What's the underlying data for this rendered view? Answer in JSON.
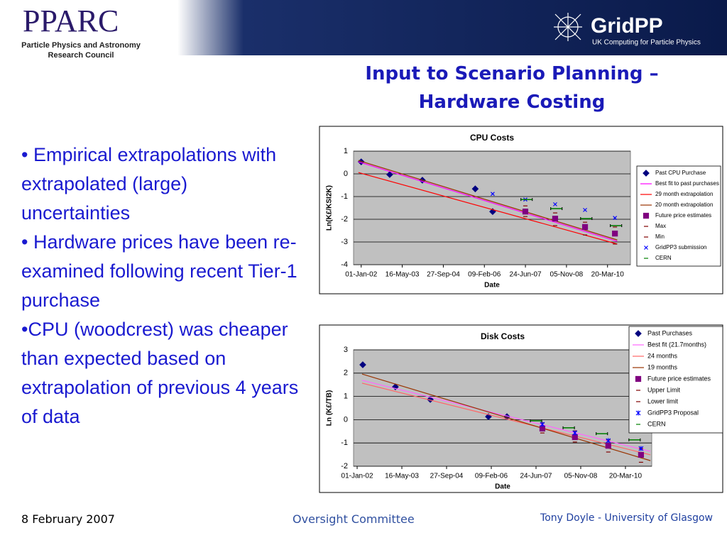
{
  "header": {
    "left_logo": "PPARC",
    "left_subtitle": [
      "Particle Physics and Astronomy",
      "Research Council"
    ],
    "right_logo": "GridPP",
    "right_subtitle": "UK Computing for Particle Physics"
  },
  "title": "Input to Scenario Planning – Hardware Costing",
  "bullets": [
    "• Empirical extrapolations with extrapolated (large) uncertainties",
    "• Hardware prices have been re-examined following recent Tier-1 purchase",
    "•CPU (woodcrest) was cheaper than expected based on extrapolation of previous 4 years of data"
  ],
  "footer": {
    "date": "8 February 2007",
    "event": "Oversight Committee",
    "author": "Tony Doyle - University of Glasgow"
  },
  "chart_data": [
    {
      "type": "scatter",
      "title": "CPU Costs",
      "x_label": "Date",
      "y_label": "Ln(K£/KSI2K)",
      "legend": "right",
      "grid": true,
      "xlim": [
        "2001-09-30",
        "2010-12-24"
      ],
      "xticks": [
        {
          "value": "2002-01-01",
          "label": "01-Jan-02"
        },
        {
          "value": "2003-05-16",
          "label": "16-May-03"
        },
        {
          "value": "2004-09-27",
          "label": "27-Sep-04"
        },
        {
          "value": "2006-02-09",
          "label": "09-Feb-06"
        },
        {
          "value": "2007-06-24",
          "label": "24-Jun-07"
        },
        {
          "value": "2008-11-05",
          "label": "05-Nov-08"
        },
        {
          "value": "2010-03-20",
          "label": "20-Mar-10"
        }
      ],
      "ylim": [
        -4,
        1
      ],
      "yticks": [
        1,
        0,
        -1,
        -2,
        -3,
        -4
      ],
      "series": [
        {
          "name": "Past CPU Purchase",
          "marker": "diamond",
          "color": "#000080",
          "x": [
            "2002-01-01",
            "2002-12-14",
            "2004-01-16",
            "2005-10-21",
            "2006-05-21"
          ],
          "values": [
            0.53,
            -0.03,
            -0.28,
            -0.66,
            -1.66
          ]
        },
        {
          "name": "Best fit to past purchases",
          "marker": "line",
          "color": "#ff00ff",
          "x": [
            "2001-11-28",
            "2010-07-16"
          ],
          "values": [
            0.53,
            -2.97
          ]
        },
        {
          "name": "29 month extrapolation",
          "marker": "line",
          "color": "#ff0000",
          "x": [
            "2001-11-28",
            "2010-07-16"
          ],
          "values": [
            0.06,
            -3.09
          ]
        },
        {
          "name": "20 month extrapolation",
          "marker": "line",
          "color": "#993300",
          "x": [
            "2001-11-28",
            "2010-07-16"
          ],
          "values": [
            0.59,
            -2.91
          ]
        },
        {
          "name": "Future price estimates",
          "marker": "square",
          "color": "#800080",
          "x": [
            "2007-06-23",
            "2008-06-20",
            "2009-06-19",
            "2010-06-18"
          ],
          "values": [
            -1.66,
            -1.97,
            -2.34,
            -2.63
          ]
        },
        {
          "name": "Max",
          "marker": "dash",
          "color": "#800000",
          "x": [
            "2007-06-23",
            "2008-06-20",
            "2009-06-19",
            "2010-06-18"
          ],
          "values": [
            -1.41,
            -1.72,
            -2.13,
            -2.34
          ]
        },
        {
          "name": "Min",
          "marker": "dash",
          "color": "#800000",
          "x": [
            "2007-06-23",
            "2008-06-20",
            "2009-06-19",
            "2010-06-18"
          ],
          "values": [
            -1.88,
            -2.28,
            -2.69,
            -3.09
          ]
        },
        {
          "name": "GridPP3 submission",
          "marker": "x",
          "color": "#0000ff",
          "x": [
            "2006-05-21",
            "2007-06-23",
            "2008-06-20",
            "2009-06-19",
            "2010-06-18"
          ],
          "values": [
            -0.88,
            -1.13,
            -1.34,
            -1.59,
            -1.94
          ]
        },
        {
          "name": "CERN",
          "marker": "bar",
          "color": "#008000",
          "x": [
            "2007-07-08",
            "2008-07-05",
            "2009-07-04",
            "2010-07-01"
          ],
          "values": [
            -1.13,
            -1.53,
            -1.97,
            -2.28
          ]
        }
      ]
    },
    {
      "type": "scatter",
      "title": "Disk Costs",
      "x_label": "Date",
      "y_label": "Ln (K£/TB)",
      "legend": "top-right",
      "grid": true,
      "xlim": [
        "2001-11-22",
        "2011-01-08"
      ],
      "xticks": [
        {
          "value": "2002-01-01",
          "label": "01-Jan-02"
        },
        {
          "value": "2003-05-16",
          "label": "16-May-03"
        },
        {
          "value": "2004-09-27",
          "label": "27-Sep-04"
        },
        {
          "value": "2006-02-09",
          "label": "09-Feb-06"
        },
        {
          "value": "2007-06-24",
          "label": "24-Jun-07"
        },
        {
          "value": "2008-11-05",
          "label": "05-Nov-08"
        },
        {
          "value": "2010-03-20",
          "label": "20-Mar-10"
        }
      ],
      "ylim": [
        -2,
        3
      ],
      "yticks": [
        3,
        2,
        1,
        0,
        -1,
        -2
      ],
      "series": [
        {
          "name": "Past Purchases",
          "marker": "diamond",
          "color": "#000080",
          "x": [
            "2002-03-05",
            "2003-03-05",
            "2004-03-29",
            "2006-01-08",
            "2006-08-03"
          ],
          "values": [
            2.36,
            1.41,
            0.87,
            0.13,
            0.13
          ]
        },
        {
          "name": "Best fit (21.7months)",
          "marker": "line",
          "color": "#ff66ff",
          "x": [
            "2002-02-25",
            "2010-12-24"
          ],
          "values": [
            1.69,
            -1.36
          ]
        },
        {
          "name": "24 months",
          "marker": "line",
          "color": "#ff6666",
          "x": [
            "2002-02-25",
            "2010-12-24"
          ],
          "values": [
            1.57,
            -1.51
          ]
        },
        {
          "name": "19 months",
          "marker": "line",
          "color": "#993300",
          "x": [
            "2002-02-25",
            "2010-12-24"
          ],
          "values": [
            1.96,
            -1.76
          ]
        },
        {
          "name": "Future price estimates",
          "marker": "square",
          "color": "#800080",
          "x": [
            "2007-09-03",
            "2008-09-01",
            "2009-09-09",
            "2010-09-10"
          ],
          "values": [
            -0.38,
            -0.75,
            -1.12,
            -1.51
          ]
        },
        {
          "name": "Upper Limit",
          "marker": "dash",
          "color": "#800000",
          "x": [
            "2007-09-03",
            "2008-09-01",
            "2009-09-09",
            "2010-09-10"
          ],
          "values": [
            -0.14,
            -0.48,
            -0.87,
            -1.24
          ]
        },
        {
          "name": "Lower limit",
          "marker": "dash",
          "color": "#800000",
          "x": [
            "2007-09-03",
            "2008-09-01",
            "2009-09-09",
            "2010-09-10"
          ],
          "values": [
            -0.57,
            -0.96,
            -1.39,
            -1.83
          ]
        },
        {
          "name": "GridPP3 Proposal",
          "marker": "star",
          "color": "#0000ff",
          "x": [
            "2007-09-03",
            "2008-09-01",
            "2009-09-09",
            "2010-09-10"
          ],
          "values": [
            -0.2,
            -0.57,
            -0.9,
            -1.24
          ]
        },
        {
          "name": "CERN",
          "marker": "bar",
          "color": "#008000",
          "x": [
            "2007-06-24",
            "2008-06-24",
            "2009-06-29",
            "2010-06-30"
          ],
          "values": [
            -0.05,
            -0.35,
            -0.6,
            -0.87
          ]
        }
      ]
    }
  ]
}
